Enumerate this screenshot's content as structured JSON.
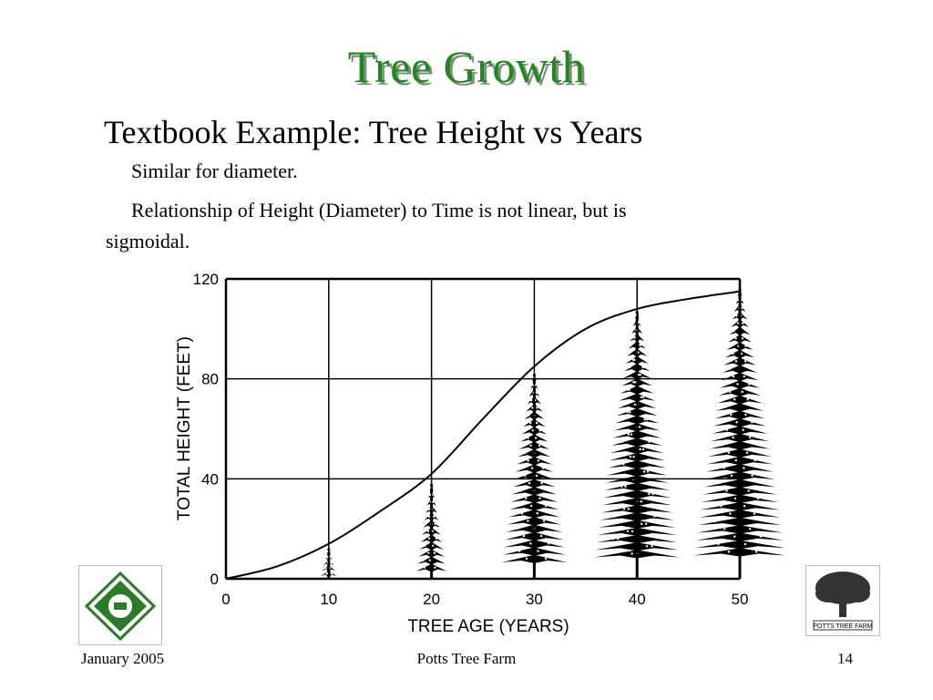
{
  "slide": {
    "title": "Tree Growth",
    "heading": "Textbook Example:  Tree Height vs Years",
    "bullet1": "Similar for diameter.",
    "bullet2_line1": "Relationship of Height (Diameter) to Time is not linear, but is",
    "bullet2_line2": "sigmoidal.",
    "title_color": "#1e8a1e"
  },
  "footer": {
    "date": "January 2005",
    "center": "Potts Tree Farm",
    "page": "14"
  },
  "logos": {
    "left_icon": "diamond-emblem-logo",
    "right_icon": "oak-tree-logo",
    "right_text": "POTTS TREE FARM"
  },
  "chart_data": {
    "type": "line",
    "xlabel": "TREE AGE (YEARS)",
    "ylabel": "TOTAL HEIGHT (FEET)",
    "xlim": [
      0,
      50
    ],
    "ylim": [
      0,
      120
    ],
    "x_ticks": [
      "0",
      "10",
      "20",
      "30",
      "40",
      "50"
    ],
    "y_ticks": [
      "0",
      "40",
      "80",
      "120"
    ],
    "grid": true,
    "series": [
      {
        "x": [
          0,
          5,
          10,
          15,
          20,
          25,
          30,
          35,
          40,
          45,
          50
        ],
        "values": [
          0,
          5,
          14,
          27,
          42,
          64,
          85,
          100,
          108,
          112,
          115
        ]
      }
    ],
    "tree_illustrations": [
      {
        "age": 10,
        "height": 12
      },
      {
        "age": 20,
        "height": 38
      },
      {
        "age": 30,
        "height": 82
      },
      {
        "age": 40,
        "height": 107
      },
      {
        "age": 50,
        "height": 116
      }
    ]
  }
}
